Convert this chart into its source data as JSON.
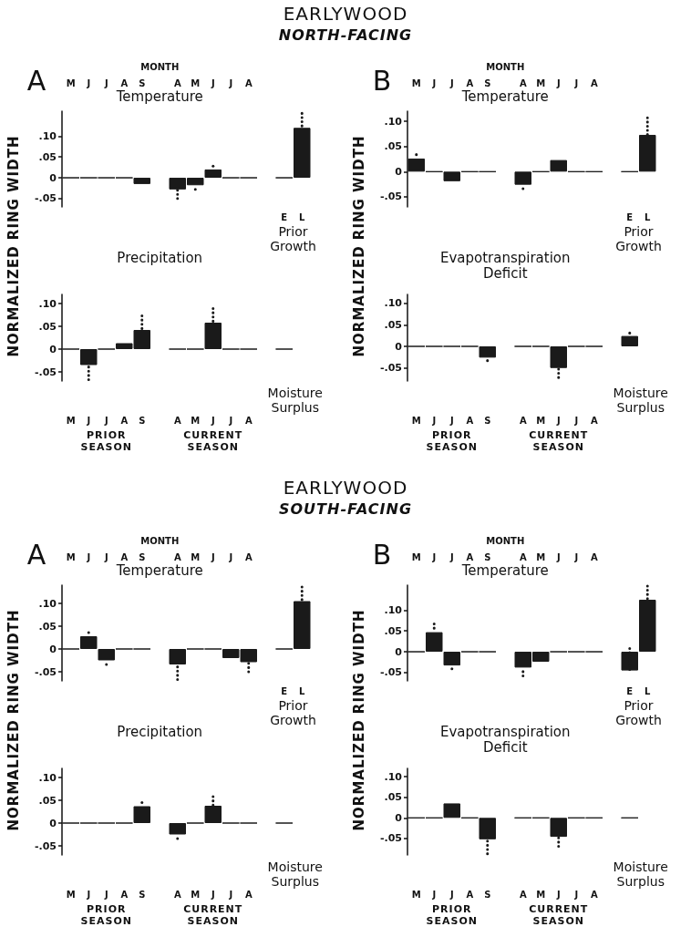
{
  "chart_data": [
    {
      "type": "bar",
      "title": "Temperature",
      "ylabel": "NORMALIZED RING WIDTH",
      "annotations": [
        "A",
        "MONTH",
        "Prior Growth",
        "EARLYWOOD",
        "NORTH-FACING"
      ],
      "categories": [
        "M",
        "J",
        "J",
        "A",
        "S",
        null,
        "A",
        "M",
        "J",
        "J",
        "A",
        null,
        "E",
        "L"
      ],
      "ylim": [
        -0.07,
        0.16
      ],
      "yticks": [
        {
          "value": -0.05,
          "label": "-.05"
        },
        {
          "value": 0,
          "label": "0"
        },
        {
          "value": 0.05,
          "label": ".05"
        },
        {
          "value": 0.1,
          "label": ".10"
        }
      ],
      "series": [
        {
          "color": "#1a1a1a",
          "values": [
            0,
            0,
            0,
            0,
            -0.015,
            null,
            -0.028,
            -0.018,
            0.02,
            0,
            0,
            null,
            0,
            0.12
          ],
          "errors": [
            null,
            null,
            null,
            null,
            null,
            null,
            [
              -0.05,
              -0.028
            ],
            [
              -0.028,
              -0.018
            ],
            [
              0.02,
              0.028
            ],
            null,
            null,
            null,
            null,
            [
              0.12,
              0.155
            ]
          ]
        }
      ]
    },
    {
      "type": "bar",
      "title": "Temperature",
      "ylabel": "NORMALIZED RING WIDTH",
      "annotations": [
        "B",
        "MONTH",
        "Prior Growth"
      ],
      "categories": [
        "M",
        "J",
        "J",
        "A",
        "S",
        null,
        "A",
        "M",
        "J",
        "J",
        "A",
        null,
        "E",
        "L"
      ],
      "ylim": [
        -0.07,
        0.12
      ],
      "yticks": [
        {
          "value": -0.05,
          "label": "-.05"
        },
        {
          "value": 0,
          "label": "0"
        },
        {
          "value": 0.05,
          "label": ".05"
        },
        {
          "value": 0.1,
          "label": ".10"
        }
      ],
      "series": [
        {
          "color": "#1a1a1a",
          "values": [
            0.026,
            0,
            -0.019,
            0,
            0,
            null,
            -0.026,
            0,
            0.023,
            0,
            0,
            null,
            0,
            0.073
          ],
          "errors": [
            [
              0.026,
              0.034
            ],
            null,
            null,
            null,
            null,
            null,
            [
              -0.034,
              -0.026
            ],
            null,
            null,
            null,
            null,
            null,
            null,
            [
              0.073,
              0.107
            ]
          ]
        }
      ]
    },
    {
      "type": "bar",
      "title": "Precipitation",
      "annotations": [
        "Moisture Surplus",
        "PRIOR SEASON",
        "CURRENT SEASON"
      ],
      "categories": [
        "M",
        "J",
        "J",
        "A",
        "S",
        null,
        "A",
        "M",
        "J",
        "J",
        "A",
        null,
        null
      ],
      "ylim": [
        -0.07,
        0.12
      ],
      "yticks": [
        {
          "value": -0.05,
          "label": "-.05"
        },
        {
          "value": 0,
          "label": "0"
        },
        {
          "value": 0.05,
          "label": ".05"
        },
        {
          "value": 0.1,
          "label": ".10"
        }
      ],
      "series": [
        {
          "color": "#1a1a1a",
          "values": [
            0,
            -0.035,
            0,
            0.013,
            0.042,
            null,
            0,
            0,
            0.058,
            0,
            0,
            null,
            0
          ],
          "errors": [
            null,
            [
              -0.067,
              -0.035
            ],
            null,
            null,
            [
              0.042,
              0.073
            ],
            null,
            null,
            null,
            [
              0.058,
              0.089
            ],
            null,
            null,
            null,
            null
          ]
        }
      ]
    },
    {
      "type": "bar",
      "title": "Evapotranspiration Deficit",
      "annotations": [
        "Moisture Surplus",
        "PRIOR SEASON",
        "CURRENT SEASON"
      ],
      "categories": [
        "M",
        "J",
        "J",
        "A",
        "S",
        null,
        "A",
        "M",
        "J",
        "J",
        "A",
        null,
        null
      ],
      "ylim": [
        -0.08,
        0.12
      ],
      "yticks": [
        {
          "value": -0.05,
          "label": "-.05"
        },
        {
          "value": 0,
          "label": "0"
        },
        {
          "value": 0.05,
          "label": ".05"
        },
        {
          "value": 0.1,
          "label": ".10"
        }
      ],
      "series": [
        {
          "color": "#1a1a1a",
          "values": [
            0,
            0,
            0,
            0,
            -0.026,
            null,
            0,
            0,
            -0.05,
            0,
            0,
            null,
            0.024
          ],
          "errors": [
            null,
            null,
            null,
            null,
            [
              -0.033,
              -0.026
            ],
            null,
            null,
            null,
            [
              -0.072,
              -0.05
            ],
            null,
            null,
            null,
            [
              0.024,
              0.031
            ]
          ]
        }
      ]
    },
    {
      "type": "bar",
      "title": "Temperature",
      "ylabel": "NORMALIZED RING WIDTH",
      "annotations": [
        "A",
        "MONTH",
        "Prior Growth",
        "EARLYWOOD",
        "SOUTH-FACING"
      ],
      "categories": [
        "M",
        "J",
        "J",
        "A",
        "S",
        null,
        "A",
        "M",
        "J",
        "J",
        "A",
        null,
        "E",
        "L"
      ],
      "ylim": [
        -0.07,
        0.14
      ],
      "yticks": [
        {
          "value": -0.05,
          "label": "-.05"
        },
        {
          "value": 0,
          "label": "0"
        },
        {
          "value": 0.05,
          "label": ".05"
        },
        {
          "value": 0.1,
          "label": ".10"
        }
      ],
      "series": [
        {
          "color": "#1a1a1a",
          "values": [
            0,
            0.028,
            -0.025,
            0,
            0,
            null,
            -0.034,
            0,
            0,
            -0.02,
            -0.029,
            null,
            0,
            0.105
          ],
          "errors": [
            null,
            [
              0.028,
              0.036
            ],
            [
              -0.034,
              -0.025
            ],
            null,
            null,
            null,
            [
              -0.067,
              -0.034
            ],
            null,
            null,
            null,
            [
              -0.05,
              -0.029
            ],
            null,
            null,
            [
              0.105,
              0.136
            ]
          ]
        }
      ]
    },
    {
      "type": "bar",
      "title": "Temperature",
      "ylabel": "NORMALIZED RING WIDTH",
      "annotations": [
        "B",
        "MONTH",
        "Prior Growth"
      ],
      "categories": [
        "M",
        "J",
        "J",
        "A",
        "S",
        null,
        "A",
        "M",
        "J",
        "J",
        "A",
        null,
        "E",
        "L"
      ],
      "ylim": [
        -0.07,
        0.16
      ],
      "yticks": [
        {
          "value": -0.05,
          "label": "-.05"
        },
        {
          "value": 0,
          "label": "0"
        },
        {
          "value": 0.05,
          "label": ".05"
        },
        {
          "value": 0.1,
          "label": ".10"
        }
      ],
      "series": [
        {
          "color": "#1a1a1a",
          "values": [
            0,
            0.047,
            -0.033,
            0,
            0,
            null,
            -0.038,
            -0.024,
            0,
            0,
            0,
            null,
            -0.045,
            0.125
          ],
          "errors": [
            null,
            [
              0.047,
              0.067
            ],
            [
              -0.041,
              -0.033
            ],
            null,
            null,
            null,
            [
              -0.058,
              -0.038
            ],
            null,
            null,
            null,
            null,
            null,
            [
              -0.045,
              0.008
            ],
            [
              0.125,
              0.158
            ]
          ]
        }
      ]
    },
    {
      "type": "bar",
      "title": "Precipitation",
      "annotations": [
        "Moisture Surplus",
        "PRIOR SEASON",
        "CURRENT SEASON"
      ],
      "categories": [
        "M",
        "J",
        "J",
        "A",
        "S",
        null,
        "A",
        "M",
        "J",
        "J",
        "A",
        null,
        null
      ],
      "ylim": [
        -0.07,
        0.12
      ],
      "yticks": [
        {
          "value": -0.05,
          "label": "-.05"
        },
        {
          "value": 0,
          "label": "0"
        },
        {
          "value": 0.05,
          "label": ".05"
        },
        {
          "value": 0.1,
          "label": ".10"
        }
      ],
      "series": [
        {
          "color": "#1a1a1a",
          "values": [
            0,
            0,
            0,
            0,
            0.037,
            null,
            -0.025,
            0,
            0.038,
            0,
            0,
            null,
            0
          ],
          "errors": [
            null,
            null,
            null,
            null,
            [
              0.037,
              0.045
            ],
            null,
            [
              -0.034,
              -0.025
            ],
            null,
            [
              0.038,
              0.058
            ],
            null,
            null,
            null,
            null
          ]
        }
      ]
    },
    {
      "type": "bar",
      "title": "Evapotranspiration Deficit",
      "annotations": [
        "Moisture Surplus",
        "PRIOR SEASON",
        "CURRENT SEASON"
      ],
      "categories": [
        "M",
        "J",
        "J",
        "A",
        "S",
        null,
        "A",
        "M",
        "J",
        "J",
        "A",
        null,
        null
      ],
      "ylim": [
        -0.09,
        0.12
      ],
      "yticks": [
        {
          "value": -0.05,
          "label": "-.05"
        },
        {
          "value": 0,
          "label": "0"
        },
        {
          "value": 0.05,
          "label": ".05"
        },
        {
          "value": 0.1,
          "label": ".10"
        }
      ],
      "series": [
        {
          "color": "#1a1a1a",
          "values": [
            0,
            0,
            0.035,
            0,
            -0.052,
            null,
            0,
            0,
            -0.046,
            0,
            0,
            null,
            0
          ],
          "errors": [
            null,
            null,
            null,
            null,
            [
              -0.087,
              -0.052
            ],
            null,
            null,
            null,
            [
              -0.069,
              -0.046
            ],
            null,
            null,
            null,
            null
          ]
        }
      ]
    }
  ]
}
